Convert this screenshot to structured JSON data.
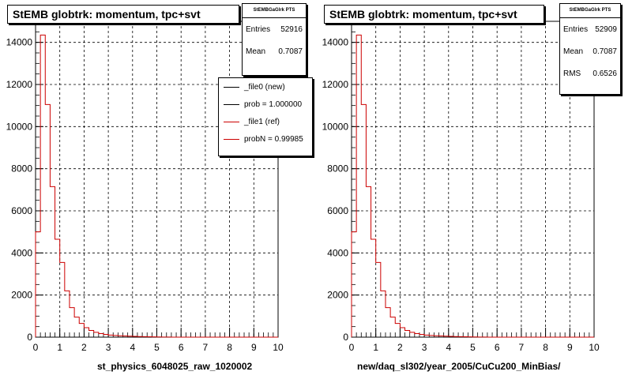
{
  "chart_data": [
    {
      "type": "histogram",
      "title": "StEMB globtrk: momentum, tpc+svt",
      "xlabel": "st_physics_6048025_raw_1020002",
      "ylabel": "",
      "xlim": [
        0,
        10
      ],
      "ylim": [
        0,
        15000
      ],
      "x_ticks": [
        "0",
        "1",
        "2",
        "3",
        "4",
        "5",
        "6",
        "7",
        "8",
        "9",
        "10"
      ],
      "y_ticks": [
        "0",
        "2000",
        "4000",
        "6000",
        "8000",
        "10000",
        "12000",
        "14000"
      ],
      "grid": true,
      "bin_width": 0.2,
      "bins_start": 0,
      "stats": {
        "name": "StEMBGaGlrk PTS",
        "entries_label": "Entries",
        "entries": "52916",
        "mean_label": "Mean",
        "mean": "0.7087"
      },
      "legend": {
        "placement": "top-right",
        "entries": [
          {
            "label": "_file0 (new)",
            "color": "#000000"
          },
          {
            "label": "prob = 1.000000",
            "color": "#000000"
          },
          {
            "label": "_file1 (ref)",
            "color": "#cc0000"
          },
          {
            "label": "probN = 0.99985",
            "color": "#cc0000"
          }
        ]
      },
      "series": [
        {
          "color": "#cc0000",
          "values": [
            5000,
            14350,
            11050,
            7150,
            4650,
            3550,
            2200,
            1400,
            950,
            650,
            450,
            320,
            230,
            170,
            130,
            100,
            80,
            65,
            55,
            45,
            38,
            30,
            25,
            20,
            15,
            10,
            5,
            3,
            2,
            1,
            0,
            0,
            0,
            0,
            0,
            0,
            0,
            0,
            0,
            0,
            0,
            0,
            0,
            0,
            0,
            0,
            0,
            0,
            0,
            0
          ]
        }
      ]
    },
    {
      "type": "histogram",
      "title": "StEMB globtrk: momentum, tpc+svt",
      "xlabel": "new/daq_sl302/year_2005/CuCu200_MinBias/",
      "ylabel": "",
      "xlim": [
        0,
        10
      ],
      "ylim": [
        0,
        15000
      ],
      "x_ticks": [
        "0",
        "1",
        "2",
        "3",
        "4",
        "5",
        "6",
        "7",
        "8",
        "9",
        "10"
      ],
      "y_ticks": [
        "0",
        "2000",
        "4000",
        "6000",
        "8000",
        "10000",
        "12000",
        "14000"
      ],
      "grid": true,
      "bin_width": 0.2,
      "bins_start": 0,
      "stats": {
        "name": "StEMBGaGlrk PTS",
        "entries_label": "Entries",
        "entries": "52909",
        "mean_label": "Mean",
        "mean": "0.7087",
        "rms_label": "RMS",
        "rms": "0.6526"
      },
      "series": [
        {
          "color": "#cc0000",
          "values": [
            5000,
            14350,
            11050,
            7150,
            4650,
            3550,
            2200,
            1400,
            950,
            650,
            450,
            320,
            230,
            170,
            130,
            100,
            80,
            65,
            55,
            45,
            38,
            30,
            25,
            20,
            15,
            10,
            5,
            3,
            2,
            1,
            0,
            0,
            0,
            0,
            0,
            0,
            0,
            0,
            0,
            0,
            0,
            0,
            0,
            0,
            0,
            0,
            0,
            0,
            0,
            0
          ]
        }
      ]
    }
  ]
}
